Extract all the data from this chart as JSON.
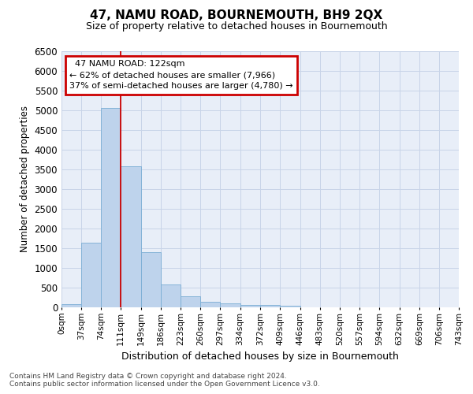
{
  "title": "47, NAMU ROAD, BOURNEMOUTH, BH9 2QX",
  "subtitle": "Size of property relative to detached houses in Bournemouth",
  "xlabel": "Distribution of detached houses by size in Bournemouth",
  "ylabel": "Number of detached properties",
  "footer_line1": "Contains HM Land Registry data © Crown copyright and database right 2024.",
  "footer_line2": "Contains public sector information licensed under the Open Government Licence v3.0.",
  "bin_edges": [
    0,
    37,
    74,
    111,
    149,
    186,
    223,
    260,
    297,
    334,
    372,
    409,
    446,
    483,
    520,
    557,
    594,
    632,
    669,
    706,
    743
  ],
  "bin_labels": [
    "0sqm",
    "37sqm",
    "74sqm",
    "111sqm",
    "149sqm",
    "186sqm",
    "223sqm",
    "260sqm",
    "297sqm",
    "334sqm",
    "372sqm",
    "409sqm",
    "446sqm",
    "483sqm",
    "520sqm",
    "557sqm",
    "594sqm",
    "632sqm",
    "669sqm",
    "706sqm",
    "743sqm"
  ],
  "bar_values": [
    75,
    1640,
    5070,
    3580,
    1410,
    590,
    290,
    140,
    100,
    70,
    55,
    50,
    0,
    0,
    0,
    0,
    0,
    0,
    0,
    0
  ],
  "bar_color": "#bed3ec",
  "bar_edge_color": "#7aadd4",
  "grid_color": "#c8d4e8",
  "bg_color": "#e8eef8",
  "property_label": "47 NAMU ROAD: 122sqm",
  "annotation_line1": "← 62% of detached houses are smaller (7,966)",
  "annotation_line2": "37% of semi-detached houses are larger (4,780) →",
  "vline_color": "#cc0000",
  "vline_position": 111,
  "annotation_box_color": "#cc0000",
  "ylim": [
    0,
    6500
  ],
  "xlim_max": 743
}
